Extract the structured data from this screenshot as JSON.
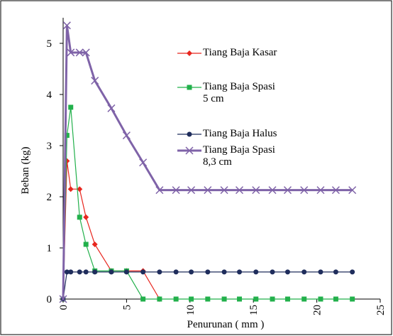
{
  "chart_data": {
    "type": "line",
    "x_label": "Penurunan ( mm )",
    "y_label": "Beban (kg)",
    "xlim": [
      0,
      25
    ],
    "xticks": [
      0,
      5,
      10,
      15,
      20,
      25
    ],
    "ylim": [
      0,
      5.5
    ],
    "yticks": [
      0,
      1,
      2,
      3,
      4,
      5
    ],
    "series": [
      {
        "name": "Tiang Baja Kasar",
        "color": "#e8261e",
        "marker": "diamond",
        "x": [
          0,
          0.3,
          0.6,
          1.3,
          1.8,
          2.5,
          3.8,
          5,
          6.3,
          7.6
        ],
        "values": [
          0,
          2.7,
          2.15,
          2.15,
          1.6,
          1.07,
          0.55,
          0.55,
          0.55,
          0
        ]
      },
      {
        "name": "Tiang Baja Spasi 5 cm",
        "color": "#22b04b",
        "marker": "square",
        "x": [
          0,
          0.3,
          0.6,
          1.3,
          1.8,
          2.5,
          3.8,
          5,
          6.3,
          7.6,
          8.9,
          10.1,
          11.4,
          12.7,
          13.9,
          15.2,
          16.5,
          17.7,
          19,
          20.3,
          21.5,
          22.8
        ],
        "values": [
          0,
          3.2,
          3.75,
          1.6,
          1.07,
          0.55,
          0.55,
          0.55,
          0,
          0,
          0,
          0,
          0,
          0,
          0,
          0,
          0,
          0,
          0,
          0,
          0,
          0
        ]
      },
      {
        "name": "Tiang Baja Halus",
        "color": "#1f2d5c",
        "marker": "circle",
        "x": [
          0,
          0.3,
          0.6,
          1.3,
          1.8,
          2.5,
          3.8,
          5,
          6.3,
          7.6,
          8.9,
          10.1,
          11.4,
          12.7,
          13.9,
          15.2,
          16.5,
          17.7,
          19,
          20.3,
          21.5,
          22.8
        ],
        "values": [
          0,
          0.53,
          0.53,
          0.53,
          0.53,
          0.53,
          0.53,
          0.53,
          0.53,
          0.53,
          0.53,
          0.53,
          0.53,
          0.53,
          0.53,
          0.53,
          0.53,
          0.53,
          0.53,
          0.53,
          0.53,
          0.53
        ]
      },
      {
        "name": "Tiang Baja Spasi 8,3 cm",
        "color": "#7f63a8",
        "marker": "x",
        "x": [
          0,
          0.3,
          0.6,
          1.3,
          1.8,
          2.5,
          3.8,
          5,
          6.3,
          7.6,
          8.9,
          10.1,
          11.4,
          12.7,
          13.9,
          15.2,
          16.5,
          17.7,
          19,
          20.3,
          21.5,
          22.8
        ],
        "values": [
          0,
          5.35,
          4.82,
          4.82,
          4.82,
          4.27,
          3.73,
          3.2,
          2.67,
          2.13,
          2.13,
          2.13,
          2.13,
          2.13,
          2.13,
          2.13,
          2.13,
          2.13,
          2.13,
          2.13,
          2.13,
          2.13
        ]
      }
    ]
  }
}
